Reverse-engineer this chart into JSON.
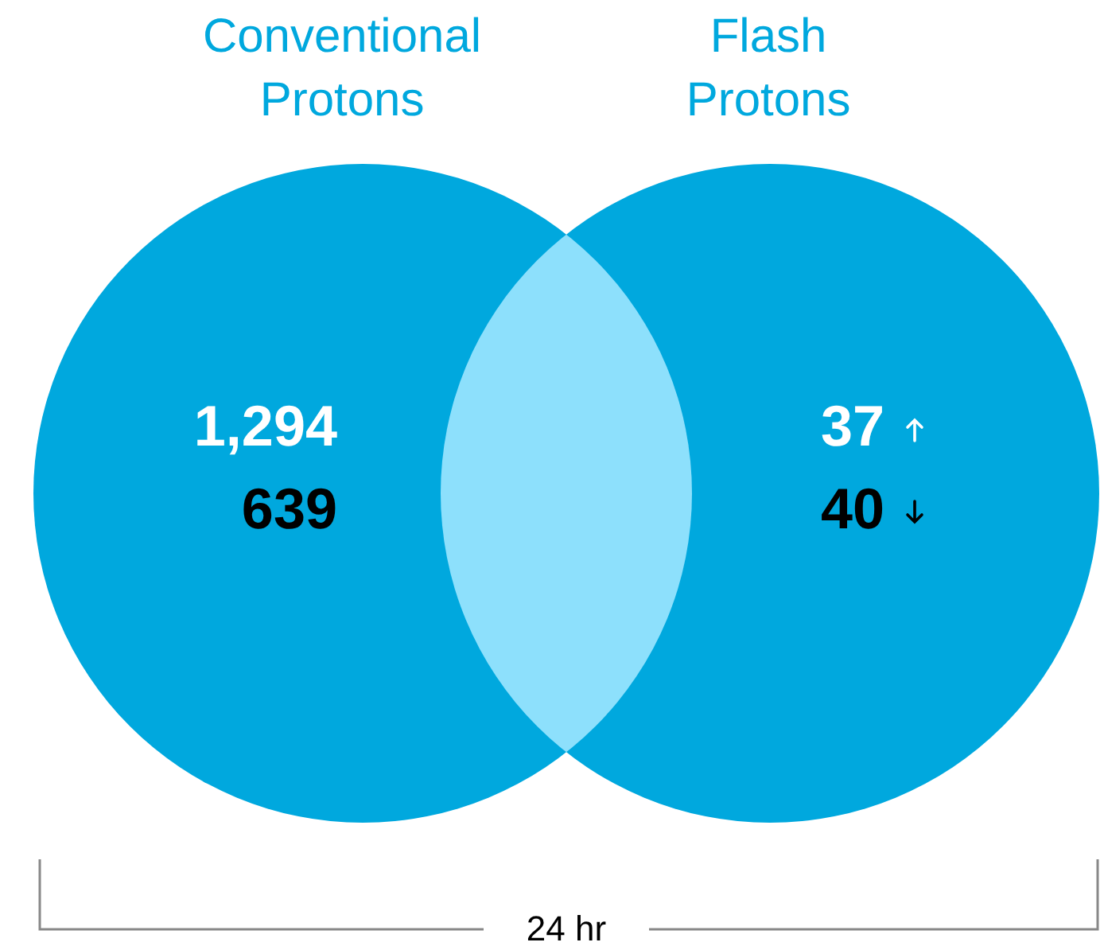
{
  "chart_data": {
    "type": "other",
    "categories": [
      "Conventional\nProtons",
      "Flash\nProtons",
      null
    ],
    "colors": [
      "#00a8de",
      "#00a8de",
      "#8de0fc"
    ],
    "series": [
      {
        "values": [
          1294,
          37,
          null
        ],
        "value_labels": [
          "1,294",
          "37",
          null
        ]
      },
      {
        "values": [
          639,
          40,
          null
        ],
        "value_labels": [
          "639",
          "40",
          null
        ]
      }
    ],
    "annotations": [
      "24 hr"
    ]
  }
}
